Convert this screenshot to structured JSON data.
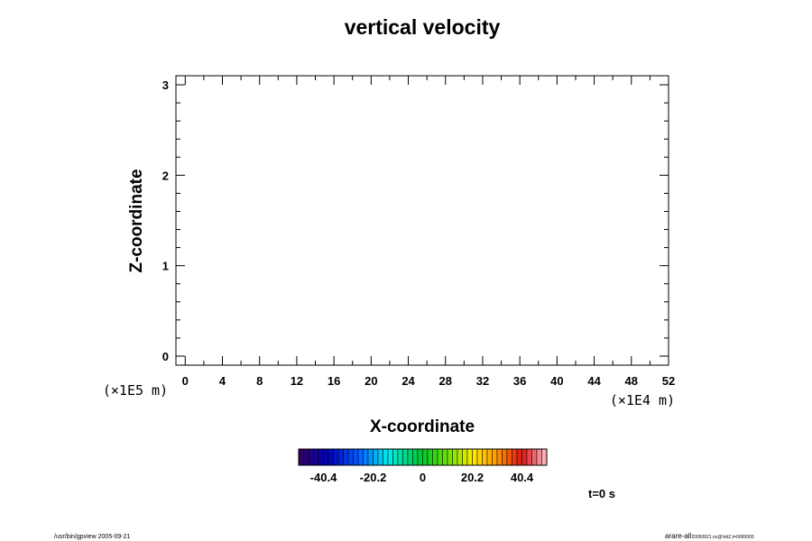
{
  "chart_data": {
    "type": "heatmap",
    "title": "vertical velocity",
    "xlabel": "X-coordinate",
    "ylabel": "Z-coordinate",
    "x_scale_label": "(×1E4 m)",
    "y_scale_label": "(×1E5 m)",
    "xlim": [
      -1,
      52
    ],
    "ylim": [
      -0.1,
      3.1
    ],
    "x_ticks": [
      0,
      4,
      8,
      12,
      16,
      20,
      24,
      28,
      32,
      36,
      40,
      44,
      48,
      52
    ],
    "y_ticks": [
      0,
      1,
      2,
      3
    ],
    "x_minor_step": 2,
    "y_minor_step": 0.2,
    "values": [],
    "colorbar": {
      "min": -50.5,
      "max": 50.5,
      "levels": 50,
      "tick_values": [
        -40.4,
        -20.2,
        0,
        20.2,
        40.4
      ],
      "tick_labels": [
        "-40.4",
        "-20.2",
        "0",
        "20.2",
        "40.4"
      ]
    },
    "time_label": "t=0 s"
  },
  "footer": {
    "left": "/usr/bin/gpview 2005-09-21",
    "right": "arare-all",
    "right_small": "20050921.nc@VelZ,t=0000000"
  }
}
